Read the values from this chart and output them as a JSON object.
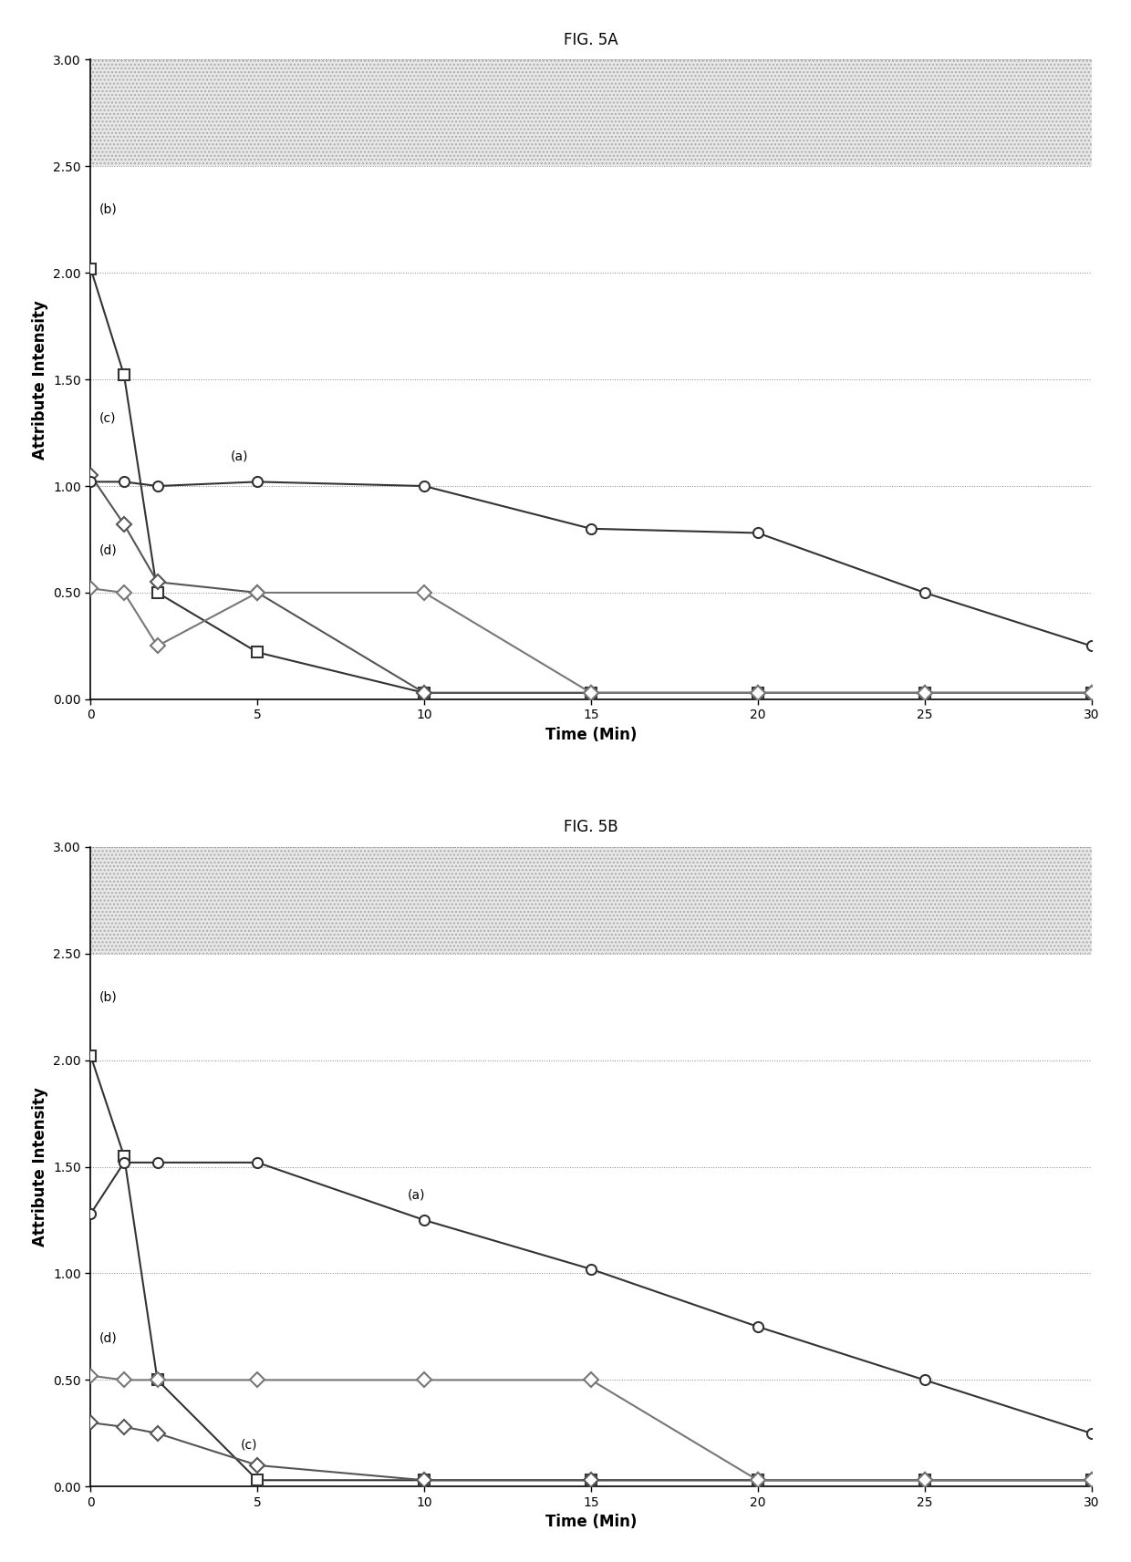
{
  "fig5a": {
    "title": "FIG. 5A",
    "series": {
      "a": {
        "label": "(a)",
        "x": [
          0,
          1,
          2,
          5,
          10,
          15,
          20,
          25,
          30
        ],
        "y": [
          1.02,
          1.02,
          1.0,
          1.02,
          1.0,
          0.8,
          0.78,
          0.5,
          0.25
        ],
        "marker": "o",
        "linestyle": "-",
        "color": "#333333",
        "ann_x": 4.2,
        "ann_y": 1.12
      },
      "b": {
        "label": "(b)",
        "x": [
          0,
          1,
          2,
          5,
          10,
          15,
          20,
          25,
          30
        ],
        "y": [
          2.02,
          1.52,
          0.5,
          0.22,
          0.03,
          0.03,
          0.03,
          0.03,
          0.03
        ],
        "marker": "s",
        "linestyle": "-",
        "color": "#333333",
        "ann_x": 0.25,
        "ann_y": 2.28
      },
      "c": {
        "label": "(c)",
        "x": [
          0,
          1,
          2,
          5,
          10,
          15,
          20,
          25,
          30
        ],
        "y": [
          1.05,
          0.82,
          0.55,
          0.5,
          0.03,
          0.03,
          0.03,
          0.03,
          0.03
        ],
        "marker": "D",
        "linestyle": "-",
        "color": "#555555",
        "ann_x": 0.25,
        "ann_y": 1.3
      },
      "d": {
        "label": "(d)",
        "x": [
          0,
          1,
          2,
          5,
          10,
          15,
          20,
          25,
          30
        ],
        "y": [
          0.52,
          0.5,
          0.25,
          0.5,
          0.5,
          0.03,
          0.03,
          0.03,
          0.03
        ],
        "marker": "D",
        "linestyle": "-",
        "color": "#777777",
        "ann_x": 0.25,
        "ann_y": 0.68
      }
    },
    "xlabel": "Time (Min)",
    "ylabel": "Attribute Intensity",
    "ylim": [
      0.0,
      3.0
    ],
    "xlim": [
      0,
      30
    ],
    "yticks": [
      0.0,
      0.5,
      1.0,
      1.5,
      2.0,
      2.5,
      3.0
    ],
    "xticks": [
      0,
      5,
      10,
      15,
      20,
      25,
      30
    ],
    "shade_ymin": 2.5,
    "shade_ymax": 3.0
  },
  "fig5b": {
    "title": "FIG. 5B",
    "series": {
      "a": {
        "label": "(a)",
        "x": [
          0,
          1,
          2,
          5,
          10,
          15,
          20,
          25,
          30
        ],
        "y": [
          1.28,
          1.52,
          1.52,
          1.52,
          1.25,
          1.02,
          0.75,
          0.5,
          0.25
        ],
        "marker": "o",
        "linestyle": "-",
        "color": "#333333",
        "ann_x": 9.5,
        "ann_y": 1.35
      },
      "b": {
        "label": "(b)",
        "x": [
          0,
          1,
          2,
          5,
          10,
          15,
          20,
          25,
          30
        ],
        "y": [
          2.02,
          1.55,
          0.5,
          0.03,
          0.03,
          0.03,
          0.03,
          0.03,
          0.03
        ],
        "marker": "s",
        "linestyle": "-",
        "color": "#333333",
        "ann_x": 0.25,
        "ann_y": 2.28
      },
      "c": {
        "label": "(c)",
        "x": [
          0,
          1,
          2,
          5,
          10,
          15,
          20,
          25,
          30
        ],
        "y": [
          0.3,
          0.28,
          0.25,
          0.1,
          0.03,
          0.03,
          0.03,
          0.03,
          0.03
        ],
        "marker": "D",
        "linestyle": "-",
        "color": "#555555",
        "ann_x": 4.5,
        "ann_y": 0.18
      },
      "d": {
        "label": "(d)",
        "x": [
          0,
          1,
          2,
          5,
          10,
          15,
          20,
          25,
          30
        ],
        "y": [
          0.52,
          0.5,
          0.5,
          0.5,
          0.5,
          0.5,
          0.03,
          0.03,
          0.03
        ],
        "marker": "D",
        "linestyle": "-",
        "color": "#777777",
        "ann_x": 0.25,
        "ann_y": 0.68
      }
    },
    "xlabel": "Time (Min)",
    "ylabel": "Attribute Intensity",
    "ylim": [
      0.0,
      3.0
    ],
    "xlim": [
      0,
      30
    ],
    "yticks": [
      0.0,
      0.5,
      1.0,
      1.5,
      2.0,
      2.5,
      3.0
    ],
    "xticks": [
      0,
      5,
      10,
      15,
      20,
      25,
      30
    ],
    "shade_ymin": 2.5,
    "shade_ymax": 3.0
  },
  "background_color": "#ffffff",
  "figure_title_fontsize": 12,
  "axis_label_fontsize": 12,
  "tick_fontsize": 10,
  "annotation_fontsize": 10,
  "marker_size": 8,
  "linewidth": 1.5
}
